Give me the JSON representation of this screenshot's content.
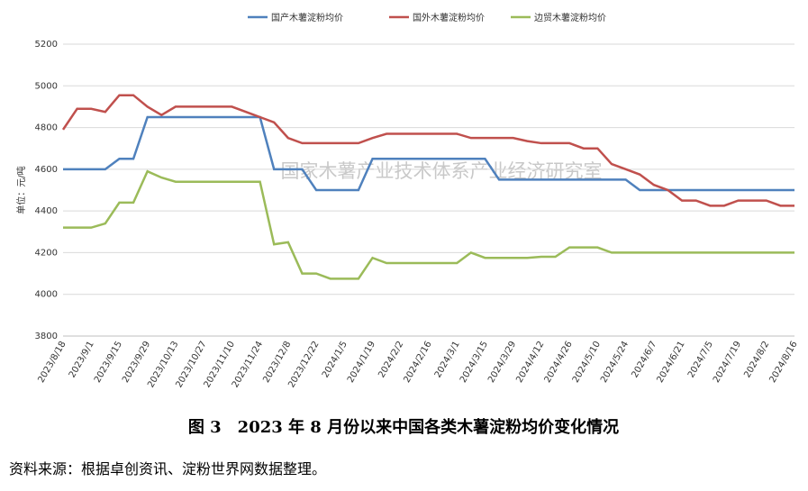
{
  "chart_data": {
    "type": "line",
    "ylabel": "单位：元/吨",
    "watermark": "国家木薯产业技术体系产业经济研究室",
    "caption": "图 3　2023 年 8 月份以来中国各类木薯淀粉均价变化情况",
    "source": "资料来源：根据卓创资讯、淀粉世界网数据整理。",
    "categories": [
      "2023/8/18",
      null,
      "2023/9/1",
      null,
      "2023/9/15",
      null,
      "2023/9/29",
      null,
      "2023/10/13",
      null,
      "2023/10/27",
      null,
      "2023/11/10",
      null,
      "2023/11/24",
      null,
      "2023/12/8",
      null,
      "2023/12/22",
      null,
      "2024/1/5",
      null,
      "2024/1/19",
      null,
      "2024/2/2",
      null,
      "2024/2/16",
      null,
      "2024/3/1",
      null,
      "2024/3/15",
      null,
      "2024/3/29",
      null,
      "2024/4/12",
      null,
      "2024/4/26",
      null,
      "2024/5/10",
      null,
      "2024/5/24",
      null,
      "2024/6/7",
      null,
      "2024/6/21",
      null,
      "2024/7/5",
      null,
      "2024/7/19",
      null,
      "2024/8/2",
      null,
      "2024/8/16"
    ],
    "series": [
      {
        "name": "国产木薯淀粉均价",
        "color": "#4f81bd",
        "values": [
          4600,
          4600,
          4600,
          4600,
          4650,
          4650,
          4850,
          4850,
          4850,
          4850,
          4850,
          4850,
          4850,
          4850,
          4850,
          4600,
          4600,
          4600,
          4500,
          4500,
          4500,
          4500,
          4650,
          4650,
          4650,
          4650,
          4650,
          4650,
          4650,
          4650,
          4650,
          4550,
          4550,
          4550,
          4550,
          4550,
          4550,
          4550,
          4550,
          4550,
          4550,
          4500,
          4500,
          4500,
          4500,
          4500,
          4500,
          4500,
          4500,
          4500,
          4500,
          4500,
          4500
        ]
      },
      {
        "name": "国外木薯淀粉均价",
        "color": "#c0504d",
        "values": [
          4790,
          4890,
          4890,
          4875,
          4955,
          4955,
          4900,
          4860,
          4900,
          4900,
          4900,
          4900,
          4900,
          4875,
          4850,
          4825,
          4750,
          4725,
          4725,
          4725,
          4725,
          4725,
          4750,
          4770,
          4770,
          4770,
          4770,
          4770,
          4770,
          4750,
          4750,
          4750,
          4750,
          4735,
          4725,
          4725,
          4725,
          4700,
          4700,
          4625,
          4600,
          4575,
          4525,
          4500,
          4450,
          4450,
          4425,
          4425,
          4450,
          4450,
          4450,
          4425,
          4425
        ]
      },
      {
        "name": "边贸木薯淀粉均价",
        "color": "#9bbb59",
        "values": [
          4320,
          4320,
          4320,
          4340,
          4440,
          4440,
          4590,
          4560,
          4540,
          4540,
          4540,
          4540,
          4540,
          4540,
          4540,
          4240,
          4250,
          4100,
          4100,
          4075,
          4075,
          4075,
          4175,
          4150,
          4150,
          4150,
          4150,
          4150,
          4150,
          4200,
          4175,
          4175,
          4175,
          4175,
          4180,
          4180,
          4225,
          4225,
          4225,
          4200,
          4200,
          4200,
          4200,
          4200,
          4200,
          4200,
          4200,
          4200,
          4200,
          4200,
          4200,
          4200,
          4200
        ]
      }
    ],
    "ylim": [
      3800,
      5200
    ],
    "yticks": [
      3800,
      4000,
      4200,
      4400,
      4600,
      4800,
      5000,
      5200
    ],
    "grid": true
  }
}
